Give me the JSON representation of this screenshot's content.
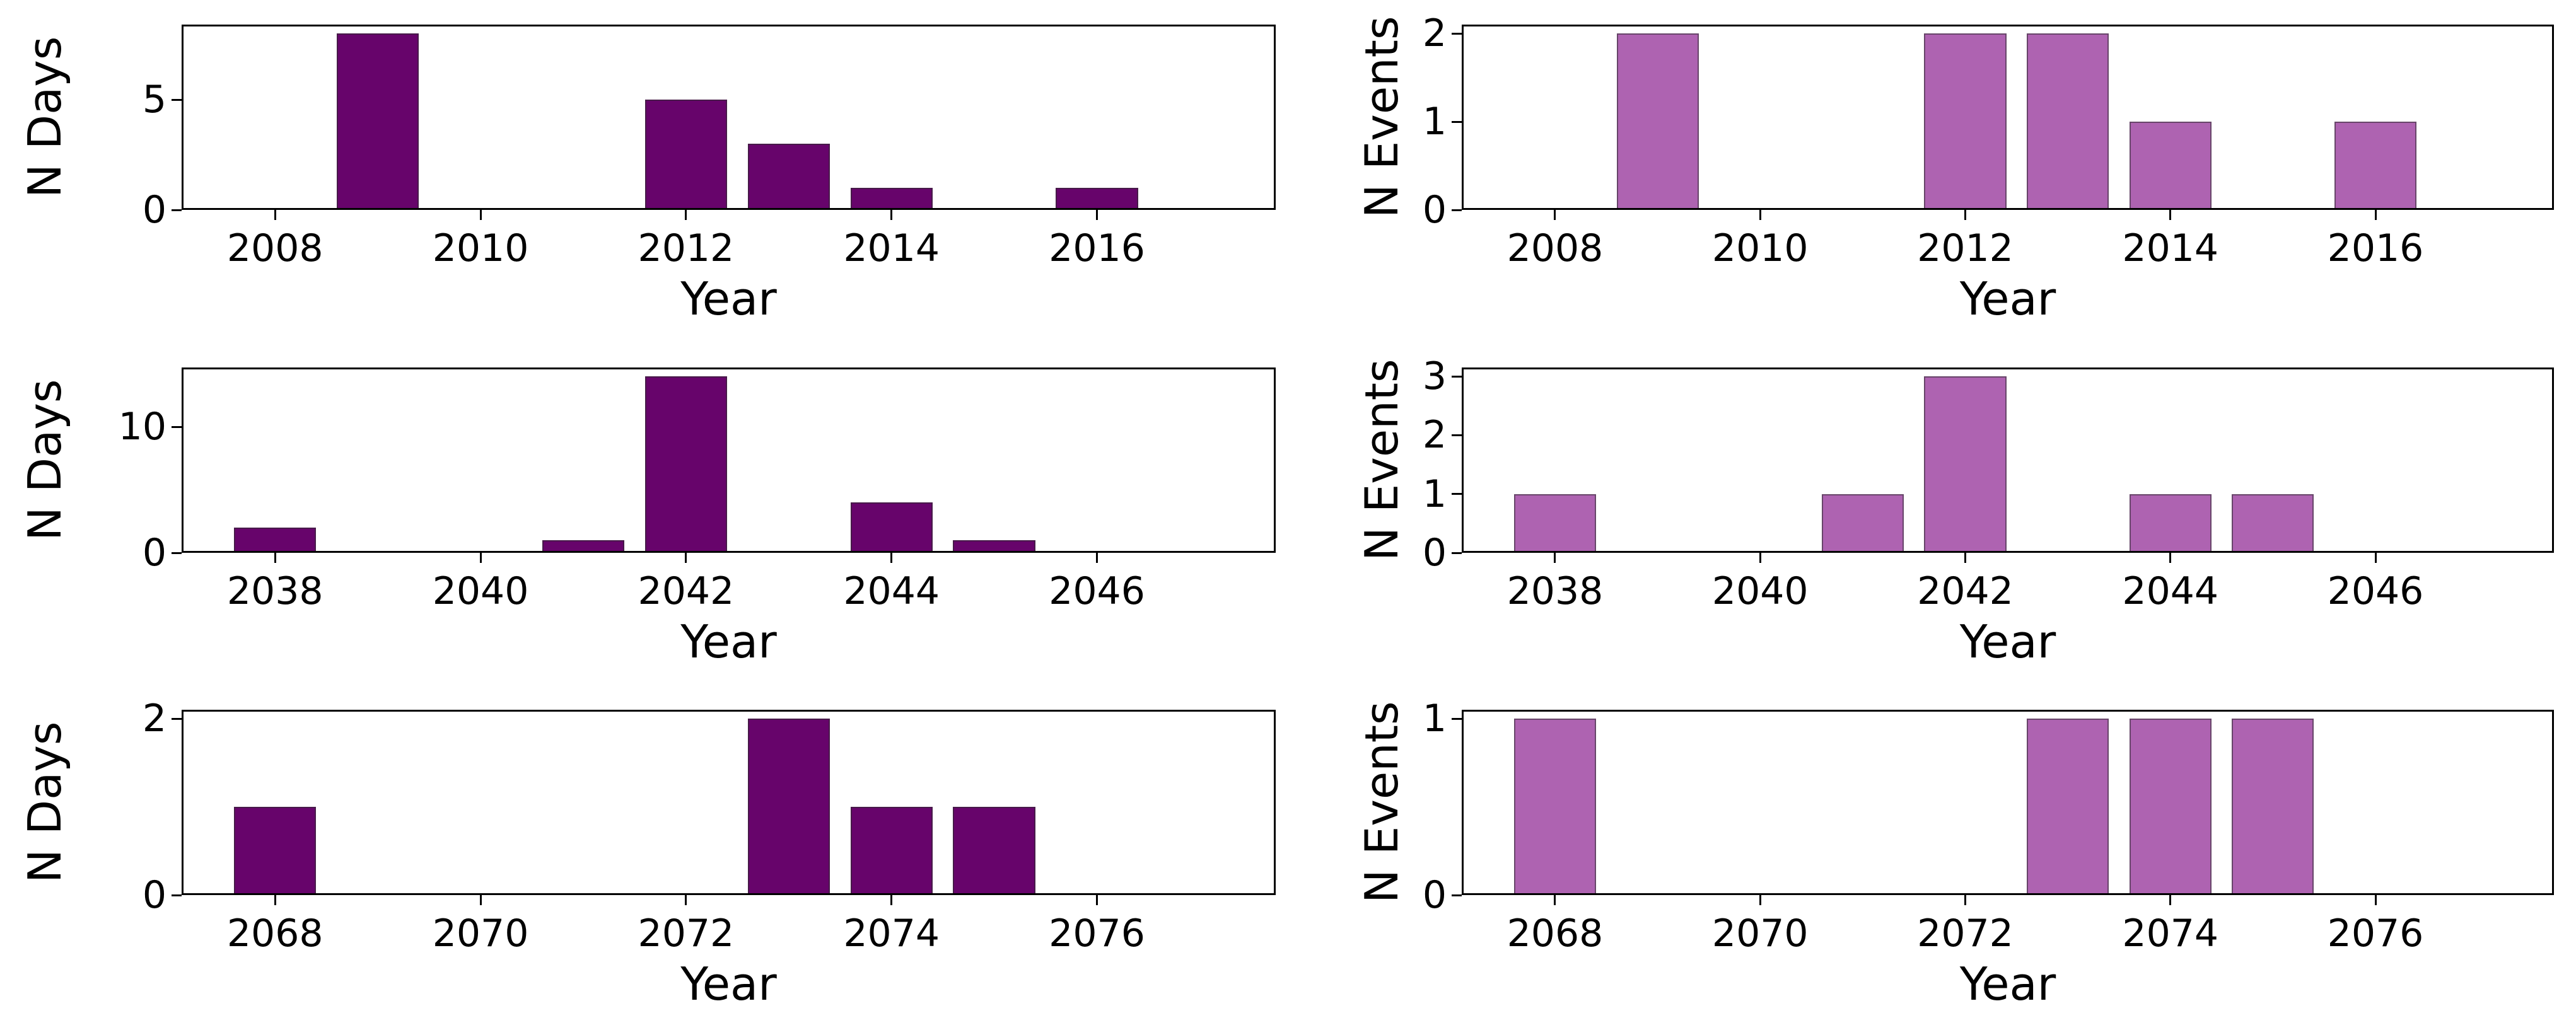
{
  "figure": {
    "background": "#ffffff",
    "n_rows": 3,
    "n_cols": 2
  },
  "colors": {
    "days_bar": "#67046b",
    "events_bar": "#ae63b1",
    "axis": "#000000",
    "text": "#000000"
  },
  "chart_data": [
    {
      "type": "bar",
      "title": "",
      "xlabel": "Year",
      "ylabel": "N Days",
      "x": [
        2009,
        2012,
        2013,
        2014,
        2016
      ],
      "values": [
        8,
        5,
        3,
        1,
        1
      ],
      "bar_width_years": 0.8,
      "bar_color": "#67046b",
      "xticks": [
        2008,
        2010,
        2012,
        2014,
        2016
      ],
      "yticks": [
        0,
        5
      ],
      "xlim": [
        2007.09,
        2017.74
      ],
      "ylim": [
        0,
        8.4
      ],
      "grid": false,
      "legend": null
    },
    {
      "type": "bar",
      "title": "",
      "xlabel": "Year",
      "ylabel": "N Events",
      "x": [
        2009,
        2012,
        2013,
        2014,
        2016
      ],
      "values": [
        2,
        2,
        2,
        1,
        1
      ],
      "bar_width_years": 0.8,
      "bar_color": "#ae63b1",
      "xticks": [
        2008,
        2010,
        2012,
        2014,
        2016
      ],
      "yticks": [
        0,
        1,
        2
      ],
      "xlim": [
        2007.09,
        2017.74
      ],
      "ylim": [
        0,
        2.1
      ],
      "grid": false,
      "legend": null
    },
    {
      "type": "bar",
      "title": "",
      "xlabel": "Year",
      "ylabel": "N Days",
      "x": [
        2038,
        2041,
        2042,
        2044,
        2045
      ],
      "values": [
        2,
        1,
        14,
        4,
        1
      ],
      "bar_width_years": 0.8,
      "bar_color": "#67046b",
      "xticks": [
        2038,
        2040,
        2042,
        2044,
        2046
      ],
      "yticks": [
        0,
        10
      ],
      "xlim": [
        2037.09,
        2047.74
      ],
      "ylim": [
        0,
        14.7
      ],
      "grid": false,
      "legend": null
    },
    {
      "type": "bar",
      "title": "",
      "xlabel": "Year",
      "ylabel": "N Events",
      "x": [
        2038,
        2041,
        2042,
        2044,
        2045
      ],
      "values": [
        1,
        1,
        3,
        1,
        1
      ],
      "bar_width_years": 0.8,
      "bar_color": "#ae63b1",
      "xticks": [
        2038,
        2040,
        2042,
        2044,
        2046
      ],
      "yticks": [
        0,
        1,
        2,
        3
      ],
      "xlim": [
        2037.09,
        2047.74
      ],
      "ylim": [
        0,
        3.15
      ],
      "grid": false,
      "legend": null
    },
    {
      "type": "bar",
      "title": "",
      "xlabel": "Year",
      "ylabel": "N Days",
      "x": [
        2068,
        2073,
        2074,
        2075
      ],
      "values": [
        1,
        2,
        1,
        1
      ],
      "bar_width_years": 0.8,
      "bar_color": "#67046b",
      "xticks": [
        2068,
        2070,
        2072,
        2074,
        2076
      ],
      "yticks": [
        0,
        2
      ],
      "xlim": [
        2067.09,
        2077.74
      ],
      "ylim": [
        0,
        2.1
      ],
      "grid": false,
      "legend": null
    },
    {
      "type": "bar",
      "title": "",
      "xlabel": "Year",
      "ylabel": "N Events",
      "x": [
        2068,
        2073,
        2074,
        2075
      ],
      "values": [
        1,
        1,
        1,
        1
      ],
      "bar_width_years": 0.8,
      "bar_color": "#ae63b1",
      "xticks": [
        2068,
        2070,
        2072,
        2074,
        2076
      ],
      "yticks": [
        0,
        1
      ],
      "xlim": [
        2067.09,
        2077.74
      ],
      "ylim": [
        0,
        1.05
      ],
      "grid": false,
      "legend": null
    }
  ]
}
